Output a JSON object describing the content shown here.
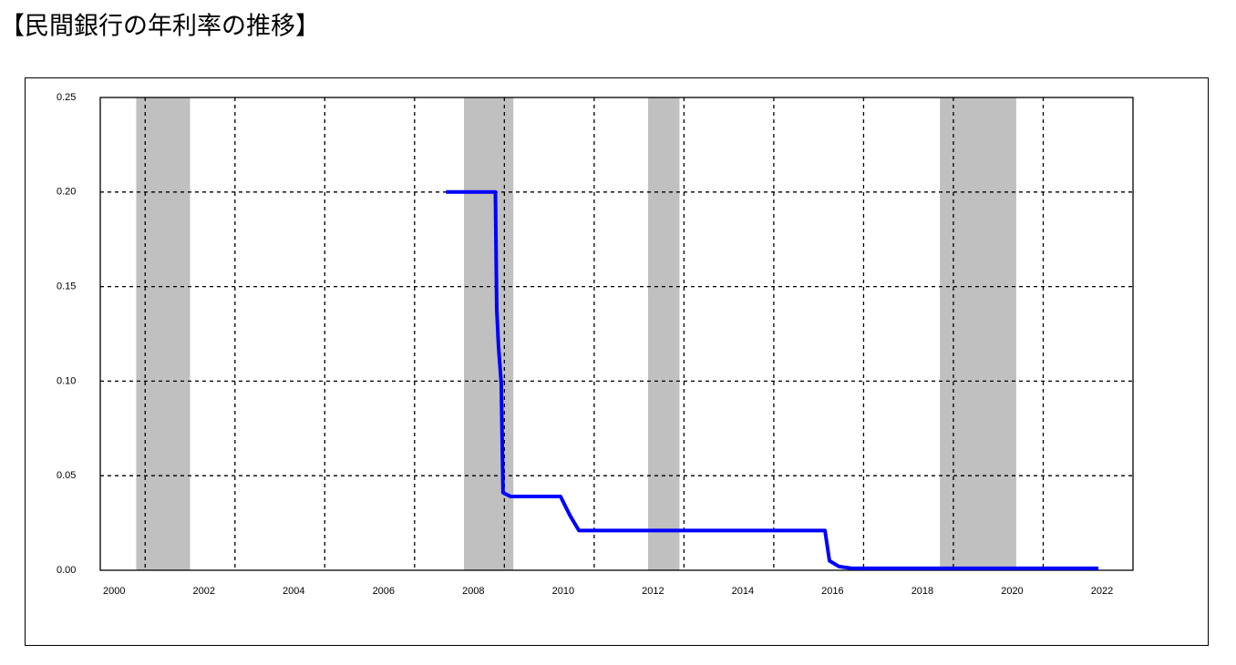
{
  "chart_data": {
    "type": "line",
    "title": "【民間銀行の年利率の推移】",
    "x": [
      2007.7,
      2008.8,
      2008.83,
      2008.87,
      2008.93,
      2008.97,
      2009.14,
      2010.25,
      2010.46,
      2010.66,
      2016.14,
      2016.24,
      2016.45,
      2016.75,
      2022.23
    ],
    "values": [
      0.2,
      0.2,
      0.138,
      0.118,
      0.099,
      0.041,
      0.039,
      0.039,
      0.029,
      0.021,
      0.021,
      0.005,
      0.002,
      0.001,
      0.001
    ],
    "color": "#0000ff",
    "xlim": [
      2000,
      2023
    ],
    "xticks": [
      2000,
      2002,
      2004,
      2006,
      2008,
      2010,
      2012,
      2014,
      2016,
      2018,
      2020,
      2022
    ],
    "xgrid": [
      2001,
      2003,
      2005,
      2007,
      2009,
      2011,
      2013,
      2015,
      2017,
      2019,
      2021
    ],
    "ylim": [
      0,
      0.25
    ],
    "yticks": [
      {
        "value": 0,
        "label": "0.00"
      },
      0.05,
      {
        "value": 0.1,
        "label": "0.10"
      },
      0.15,
      {
        "value": 0.2,
        "label": "0.20"
      },
      0.25
    ],
    "grid": true,
    "shaded": [
      [
        2000.8,
        2002.0
      ],
      [
        2008.1,
        2009.2
      ],
      [
        2012.2,
        2012.9
      ],
      [
        2018.7,
        2020.4
      ]
    ],
    "shaded_color": "#c0c0c0"
  }
}
